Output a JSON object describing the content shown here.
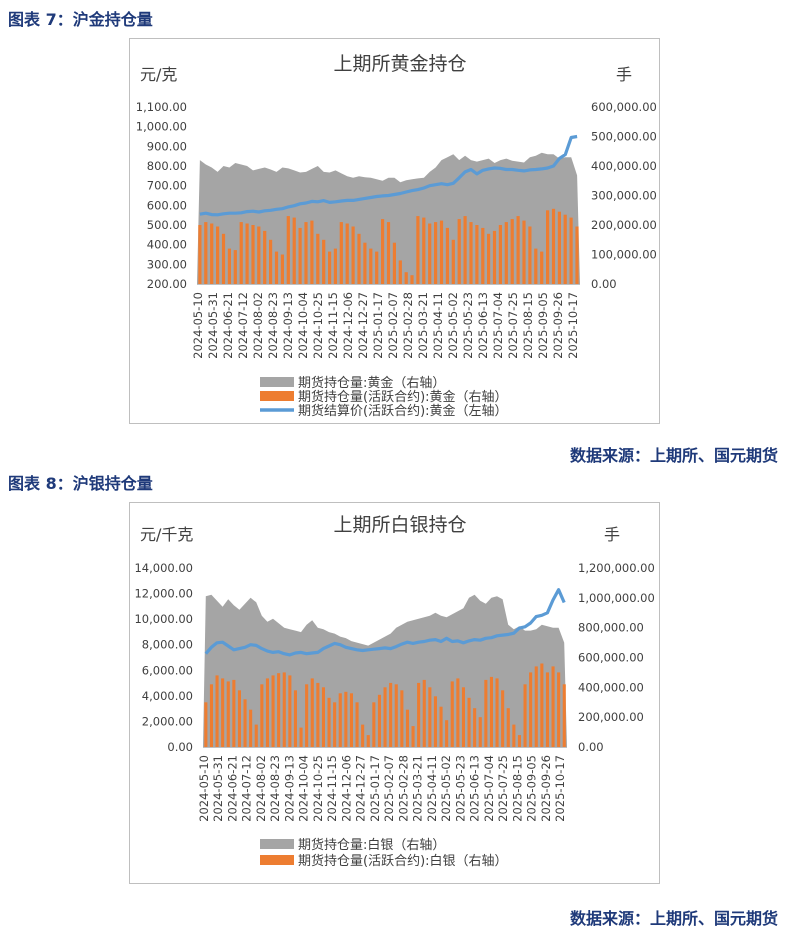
{
  "charts": [
    {
      "figure_label": "图表 7：沪金持仓量",
      "source_text": "数据来源：上期所、国元期货",
      "chart_data": {
        "type": "area",
        "title": "上期所黄金持仓",
        "left_unit": "元/克",
        "right_unit": "手",
        "left_ylim": [
          200,
          1100
        ],
        "left_ticks": [
          "200.00",
          "300.00",
          "400.00",
          "500.00",
          "600.00",
          "700.00",
          "800.00",
          "900.00",
          "1,000.00",
          "1,100.00"
        ],
        "right_ylim": [
          0,
          600000
        ],
        "right_ticks": [
          "0.00",
          "100,000.00",
          "200,000.00",
          "300,000.00",
          "400,000.00",
          "500,000.00",
          "600,000.00"
        ],
        "x_ticks": [
          "2024-05-10",
          "2024-05-31",
          "2024-06-21",
          "2024-07-12",
          "2024-08-02",
          "2024-08-23",
          "2024-09-13",
          "2024-10-04",
          "2024-10-25",
          "2024-11-15",
          "2024-12-06",
          "2024-12-27",
          "2025-01-17",
          "2025-02-07",
          "2025-02-28",
          "2025-03-21",
          "2025-04-11",
          "2025-05-02",
          "2025-05-23",
          "2025-06-13",
          "2025-07-04",
          "2025-07-25",
          "2025-08-15",
          "2025-09-05",
          "2025-09-26",
          "2025-10-17"
        ],
        "series": [
          {
            "name": "期货持仓量:黄金（右轴）",
            "axis": "right",
            "kind": "area",
            "color": "#a5a5a5",
            "values": [
              420000,
              405000,
              395000,
              380000,
              400000,
              395000,
              410000,
              405000,
              400000,
              385000,
              390000,
              395000,
              388000,
              380000,
              395000,
              392000,
              385000,
              378000,
              380000,
              390000,
              400000,
              380000,
              378000,
              385000,
              375000,
              365000,
              360000,
              365000,
              362000,
              360000,
              355000,
              350000,
              360000,
              360000,
              345000,
              352000,
              355000,
              358000,
              360000,
              380000,
              395000,
              420000,
              430000,
              440000,
              420000,
              435000,
              420000,
              415000,
              420000,
              425000,
              410000,
              420000,
              425000,
              418000,
              415000,
              412000,
              430000,
              435000,
              445000,
              440000,
              440000,
              425000,
              430000,
              430000,
              368000
            ]
          },
          {
            "name": "期货持仓量(活跃合约):黄金（右轴）",
            "axis": "right",
            "kind": "bar",
            "color": "#ed7d31",
            "values": [
              200000,
              210000,
              205000,
              195000,
              170000,
              120000,
              115000,
              210000,
              205000,
              200000,
              195000,
              180000,
              150000,
              110000,
              100000,
              230000,
              225000,
              190000,
              210000,
              215000,
              170000,
              150000,
              110000,
              120000,
              210000,
              205000,
              195000,
              170000,
              140000,
              120000,
              110000,
              220000,
              210000,
              140000,
              80000,
              40000,
              30000,
              230000,
              225000,
              205000,
              210000,
              215000,
              190000,
              150000,
              220000,
              230000,
              210000,
              200000,
              190000,
              170000,
              180000,
              200000,
              210000,
              220000,
              230000,
              215000,
              195000,
              120000,
              110000,
              250000,
              255000,
              245000,
              235000,
              225000,
              195000
            ]
          },
          {
            "name": "期货结算价(活跃合约):黄金（左轴）",
            "axis": "left",
            "kind": "line",
            "color": "#5b9bd5",
            "values": [
              555,
              560,
              553,
              552,
              557,
              560,
              560,
              562,
              568,
              570,
              566,
              572,
              575,
              580,
              583,
              592,
              598,
              608,
              612,
              620,
              618,
              624,
              615,
              618,
              622,
              625,
              625,
              630,
              635,
              640,
              645,
              648,
              650,
              655,
              660,
              668,
              675,
              680,
              688,
              700,
              705,
              710,
              705,
              712,
              740,
              770,
              782,
              760,
              778,
              785,
              790,
              788,
              782,
              782,
              778,
              775,
              780,
              782,
              785,
              790,
              800,
              838,
              858,
              945,
              950
            ]
          }
        ]
      }
    },
    {
      "figure_label": "图表 8：沪银持仓量",
      "source_text": "数据来源：上期所、国元期货",
      "chart_data": {
        "type": "area",
        "title": "上期所白银持仓",
        "left_unit": "元/千克",
        "right_unit": "手",
        "left_ylim": [
          0,
          14000
        ],
        "left_ticks": [
          "0.00",
          "2,000.00",
          "4,000.00",
          "6,000.00",
          "8,000.00",
          "10,000.00",
          "12,000.00",
          "14,000.00"
        ],
        "right_ylim": [
          0,
          1200000
        ],
        "right_ticks": [
          "0.00",
          "200,000.00",
          "400,000.00",
          "600,000.00",
          "800,000.00",
          "1,000,000.00",
          "1,200,000.00"
        ],
        "x_ticks": [
          "2024-05-10",
          "2024-05-31",
          "2024-06-21",
          "2024-07-12",
          "2024-08-02",
          "2024-08-23",
          "2024-09-13",
          "2024-10-04",
          "2024-10-25",
          "2024-11-15",
          "2024-12-06",
          "2024-12-27",
          "2025-01-17",
          "2025-02-07",
          "2025-02-28",
          "2025-03-21",
          "2025-04-11",
          "2025-05-02",
          "2025-05-23",
          "2025-06-13",
          "2025-07-04",
          "2025-07-25",
          "2025-08-15",
          "2025-09-05",
          "2025-09-26",
          "2025-10-17"
        ],
        "series": [
          {
            "name": "期货持仓量:白银（右轴）",
            "axis": "right",
            "kind": "area",
            "color": "#a5a5a5",
            "values": [
              1010000,
              1020000,
              980000,
              940000,
              990000,
              950000,
              920000,
              960000,
              1000000,
              970000,
              880000,
              840000,
              860000,
              830000,
              800000,
              790000,
              780000,
              770000,
              820000,
              850000,
              800000,
              790000,
              770000,
              760000,
              740000,
              730000,
              710000,
              700000,
              690000,
              680000,
              700000,
              720000,
              740000,
              760000,
              800000,
              820000,
              840000,
              850000,
              860000,
              870000,
              880000,
              900000,
              880000,
              870000,
              890000,
              910000,
              930000,
              1000000,
              1020000,
              980000,
              960000,
              1000000,
              1010000,
              990000,
              820000,
              790000,
              810000,
              780000,
              780000,
              790000,
              820000,
              810000,
              800000,
              800000,
              700000
            ]
          },
          {
            "name": "期货持仓量(活跃合约):白银（右轴）",
            "axis": "right",
            "kind": "bar",
            "color": "#ed7d31",
            "values": [
              300000,
              420000,
              480000,
              460000,
              440000,
              450000,
              380000,
              320000,
              250000,
              150000,
              420000,
              460000,
              480000,
              495000,
              500000,
              480000,
              380000,
              130000,
              420000,
              460000,
              430000,
              400000,
              330000,
              300000,
              360000,
              370000,
              360000,
              300000,
              150000,
              80000,
              300000,
              350000,
              400000,
              430000,
              420000,
              380000,
              250000,
              140000,
              430000,
              450000,
              400000,
              340000,
              270000,
              180000,
              440000,
              460000,
              400000,
              330000,
              260000,
              200000,
              450000,
              470000,
              460000,
              380000,
              260000,
              150000,
              80000,
              420000,
              500000,
              540000,
              560000,
              500000,
              540000,
              500000,
              420000
            ]
          },
          {
            "name": "",
            "axis": "left",
            "kind": "line",
            "color": "#5b9bd5",
            "values": [
              7300,
              7800,
              8150,
              8200,
              7900,
              7600,
              7700,
              7800,
              8000,
              7950,
              7700,
              7500,
              7400,
              7450,
              7300,
              7200,
              7350,
              7400,
              7300,
              7350,
              7400,
              7700,
              7900,
              8100,
              8000,
              7800,
              7700,
              7600,
              7550,
              7600,
              7650,
              7700,
              7750,
              7700,
              7850,
              8050,
              8200,
              8100,
              8200,
              8250,
              8350,
              8400,
              8250,
              8500,
              8250,
              8300,
              8150,
              8300,
              8400,
              8350,
              8500,
              8550,
              8700,
              8750,
              8800,
              8900,
              9300,
              9400,
              9700,
              10200,
              10300,
              10500,
              11500,
              12300,
              11300
            ]
          }
        ]
      }
    }
  ]
}
